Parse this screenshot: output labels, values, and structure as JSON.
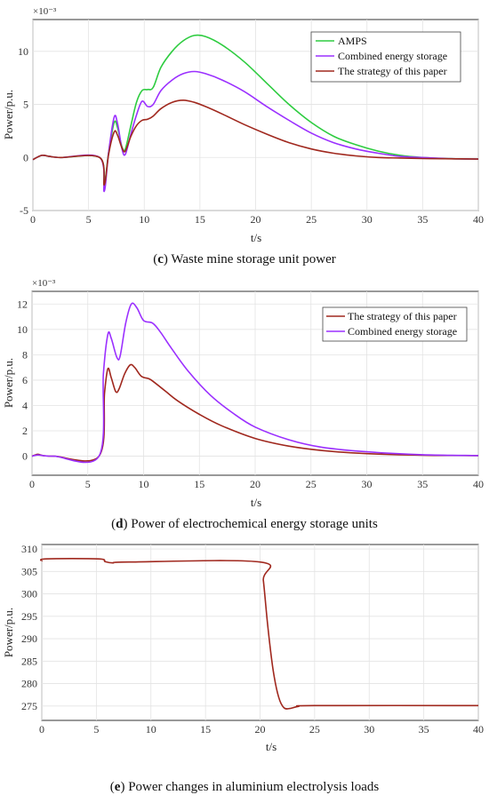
{
  "captions": [
    {
      "letter": "c",
      "text": " Waste mine storage unit power"
    },
    {
      "letter": "d",
      "text": " Power of electrochemical energy storage units"
    },
    {
      "letter": "e",
      "text": " Power changes in aluminium electrolysis loads"
    }
  ],
  "chart_data": [
    {
      "type": "line",
      "xlabel": "t/s",
      "ylabel": "Power/p.u.",
      "y_exponent": "×10⁻³",
      "xlim": [
        0,
        40
      ],
      "ylim": [
        -5,
        13
      ],
      "xticks": [
        0,
        5,
        10,
        15,
        20,
        25,
        30,
        35,
        40
      ],
      "yticks": [
        -5,
        0,
        5,
        10
      ],
      "grid": true,
      "legend_position": "top-right",
      "series": [
        {
          "name": "AMPS",
          "color": "#2ecc40",
          "points": [
            [
              0,
              -0.2
            ],
            [
              0.8,
              0.2
            ],
            [
              1.5,
              0.1
            ],
            [
              2.5,
              0
            ],
            [
              6,
              0
            ],
            [
              6.4,
              -2.5
            ],
            [
              6.8,
              0.5
            ],
            [
              7.3,
              3.3
            ],
            [
              7.6,
              2.8
            ],
            [
              8.0,
              1.0
            ],
            [
              8.3,
              0.8
            ],
            [
              8.8,
              3.0
            ],
            [
              9.3,
              5.2
            ],
            [
              9.8,
              6.3
            ],
            [
              10.3,
              6.4
            ],
            [
              10.8,
              6.6
            ],
            [
              11.5,
              8.5
            ],
            [
              12.5,
              10.0
            ],
            [
              13.5,
              11.0
            ],
            [
              14.5,
              11.5
            ],
            [
              15.5,
              11.4
            ],
            [
              17,
              10.6
            ],
            [
              19,
              9.0
            ],
            [
              21,
              7.0
            ],
            [
              23,
              5.0
            ],
            [
              25,
              3.3
            ],
            [
              27,
              2.0
            ],
            [
              29,
              1.2
            ],
            [
              31,
              0.6
            ],
            [
              33,
              0.2
            ],
            [
              35,
              0.0
            ],
            [
              37,
              -0.1
            ],
            [
              40,
              -0.15
            ]
          ]
        },
        {
          "name": "Combined energy storage",
          "color": "#9b30ff",
          "points": [
            [
              0,
              -0.2
            ],
            [
              0.8,
              0.2
            ],
            [
              1.5,
              0.1
            ],
            [
              2.5,
              0
            ],
            [
              6,
              0
            ],
            [
              6.4,
              -3.2
            ],
            [
              6.8,
              0.5
            ],
            [
              7.3,
              3.8
            ],
            [
              7.6,
              3.2
            ],
            [
              8.0,
              0.8
            ],
            [
              8.3,
              0.3
            ],
            [
              8.8,
              2.2
            ],
            [
              9.3,
              4.0
            ],
            [
              9.8,
              5.3
            ],
            [
              10.3,
              4.8
            ],
            [
              10.8,
              5.0
            ],
            [
              11.5,
              6.3
            ],
            [
              12.5,
              7.3
            ],
            [
              13.5,
              7.9
            ],
            [
              14.5,
              8.1
            ],
            [
              15.5,
              7.9
            ],
            [
              17,
              7.3
            ],
            [
              19,
              6.2
            ],
            [
              21,
              4.8
            ],
            [
              23,
              3.5
            ],
            [
              25,
              2.3
            ],
            [
              27,
              1.4
            ],
            [
              29,
              0.8
            ],
            [
              31,
              0.4
            ],
            [
              33,
              0.1
            ],
            [
              35,
              0.0
            ],
            [
              37,
              -0.1
            ],
            [
              40,
              -0.15
            ]
          ]
        },
        {
          "name": "The strategy of this paper",
          "color": "#a0281e",
          "points": [
            [
              0,
              -0.2
            ],
            [
              0.8,
              0.2
            ],
            [
              1.5,
              0.1
            ],
            [
              2.5,
              0
            ],
            [
              6,
              0
            ],
            [
              6.4,
              -2.6
            ],
            [
              6.8,
              0.3
            ],
            [
              7.3,
              2.4
            ],
            [
              7.6,
              2.1
            ],
            [
              8.0,
              0.9
            ],
            [
              8.3,
              0.6
            ],
            [
              8.8,
              2.0
            ],
            [
              9.3,
              3.0
            ],
            [
              9.8,
              3.5
            ],
            [
              10.3,
              3.6
            ],
            [
              10.8,
              3.9
            ],
            [
              11.5,
              4.6
            ],
            [
              12.5,
              5.2
            ],
            [
              13.5,
              5.4
            ],
            [
              14.5,
              5.2
            ],
            [
              15.5,
              4.8
            ],
            [
              17,
              4.1
            ],
            [
              19,
              3.1
            ],
            [
              21,
              2.2
            ],
            [
              23,
              1.4
            ],
            [
              25,
              0.8
            ],
            [
              27,
              0.4
            ],
            [
              29,
              0.15
            ],
            [
              31,
              0.0
            ],
            [
              33,
              -0.05
            ],
            [
              35,
              -0.1
            ],
            [
              37,
              -0.12
            ],
            [
              40,
              -0.15
            ]
          ]
        }
      ]
    },
    {
      "type": "line",
      "xlabel": "t/s",
      "ylabel": "Power/p.u.",
      "y_exponent": "×10⁻³",
      "xlim": [
        0,
        40
      ],
      "ylim": [
        -1.5,
        13
      ],
      "xticks": [
        0,
        5,
        10,
        15,
        20,
        25,
        30,
        35,
        40
      ],
      "yticks": [
        0,
        2,
        4,
        6,
        8,
        10,
        12
      ],
      "grid": true,
      "legend_position": "top-right",
      "series": [
        {
          "name": "The strategy of this paper",
          "color": "#a0281e",
          "points": [
            [
              0,
              0
            ],
            [
              0.5,
              0.15
            ],
            [
              1.0,
              0.05
            ],
            [
              2,
              0
            ],
            [
              6,
              0
            ],
            [
              6.5,
              5.0
            ],
            [
              6.8,
              6.9
            ],
            [
              7.1,
              6.2
            ],
            [
              7.5,
              5.1
            ],
            [
              7.8,
              5.3
            ],
            [
              8.3,
              6.5
            ],
            [
              8.8,
              7.2
            ],
            [
              9.2,
              7.0
            ],
            [
              9.8,
              6.3
            ],
            [
              10.5,
              6.1
            ],
            [
              11,
              5.8
            ],
            [
              12,
              5.1
            ],
            [
              13,
              4.4
            ],
            [
              15,
              3.3
            ],
            [
              17,
              2.4
            ],
            [
              20,
              1.4
            ],
            [
              23,
              0.8
            ],
            [
              26,
              0.45
            ],
            [
              30,
              0.2
            ],
            [
              35,
              0.08
            ],
            [
              40,
              0.05
            ]
          ]
        },
        {
          "name": "Combined energy storage",
          "color": "#9b30ff",
          "points": [
            [
              0,
              0
            ],
            [
              0.5,
              0.1
            ],
            [
              1.0,
              0.05
            ],
            [
              2,
              0
            ],
            [
              6,
              0
            ],
            [
              6.4,
              6.5
            ],
            [
              6.8,
              9.6
            ],
            [
              7.1,
              9.3
            ],
            [
              7.6,
              7.8
            ],
            [
              7.9,
              7.9
            ],
            [
              8.4,
              10.5
            ],
            [
              8.9,
              12.0
            ],
            [
              9.4,
              11.7
            ],
            [
              10,
              10.7
            ],
            [
              10.8,
              10.5
            ],
            [
              11.5,
              9.8
            ],
            [
              12.5,
              8.5
            ],
            [
              14,
              6.7
            ],
            [
              16,
              4.8
            ],
            [
              18,
              3.4
            ],
            [
              20,
              2.3
            ],
            [
              23,
              1.3
            ],
            [
              26,
              0.7
            ],
            [
              30,
              0.35
            ],
            [
              35,
              0.12
            ],
            [
              40,
              0.05
            ]
          ]
        }
      ]
    },
    {
      "type": "line",
      "xlabel": "t/s",
      "ylabel": "Power/p.u.",
      "xlim": [
        0,
        40
      ],
      "ylim": [
        271.8,
        311
      ],
      "xticks": [
        0,
        5,
        10,
        15,
        20,
        25,
        30,
        35,
        40
      ],
      "yticks": [
        275,
        280,
        285,
        290,
        295,
        300,
        305,
        310
      ],
      "grid": true,
      "series": [
        {
          "color": "#a0281e",
          "points": [
            [
              0,
              307.3
            ],
            [
              0.4,
              307.8
            ],
            [
              5.2,
              307.8
            ],
            [
              5.8,
              307.2
            ],
            [
              6.5,
              306.9
            ],
            [
              8,
              307.1
            ],
            [
              20,
              307.1
            ],
            [
              20.3,
              303
            ],
            [
              20.7,
              293
            ],
            [
              21.2,
              283
            ],
            [
              21.7,
              277
            ],
            [
              22.2,
              274.6
            ],
            [
              22.8,
              274.5
            ],
            [
              23.5,
              274.9
            ],
            [
              25,
              275.1
            ],
            [
              40,
              275.1
            ]
          ]
        }
      ]
    }
  ]
}
